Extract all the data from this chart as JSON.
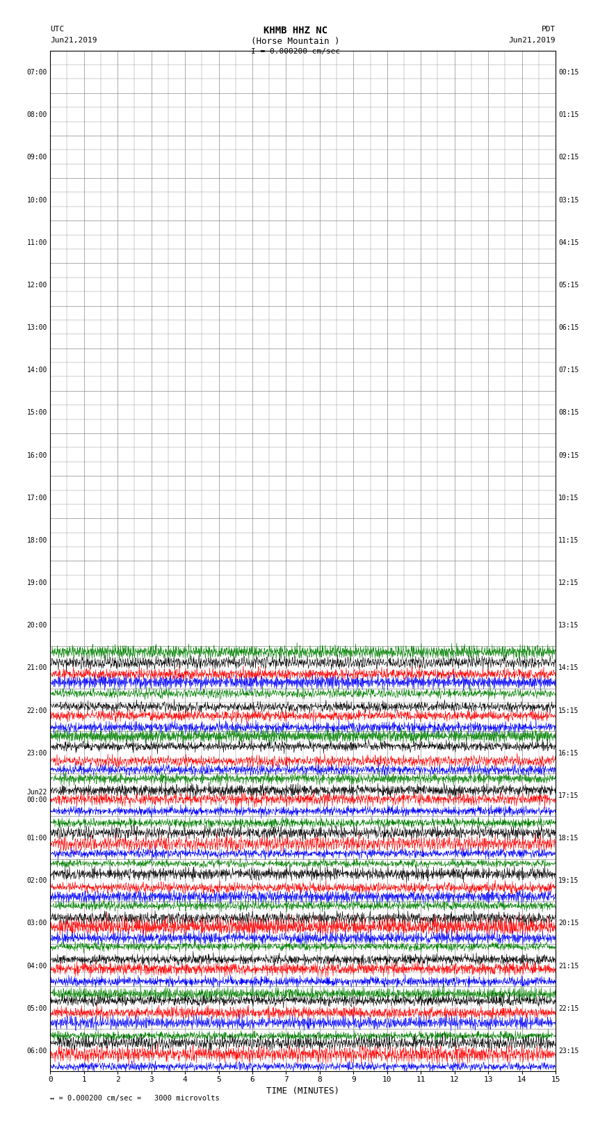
{
  "title_line1": "KHMB HHZ NC",
  "title_line2": "(Horse Mountain )",
  "title_scale": "I = 0.000200 cm/sec",
  "label_utc": "UTC",
  "label_utc_date": "Jun21,2019",
  "label_pdt": "PDT",
  "label_pdt_date": "Jun21,2019",
  "label_bottom": "TIME (MINUTES)",
  "label_scale": "= 0.000200 cm/sec =   3000 microvolts",
  "ylabel_left": [
    "07:00",
    "08:00",
    "09:00",
    "10:00",
    "11:00",
    "12:00",
    "13:00",
    "14:00",
    "15:00",
    "16:00",
    "17:00",
    "18:00",
    "19:00",
    "20:00",
    "21:00",
    "22:00",
    "23:00",
    "Jun22\n00:00",
    "01:00",
    "02:00",
    "03:00",
    "04:00",
    "05:00",
    "06:00"
  ],
  "ylabel_right": [
    "00:15",
    "01:15",
    "02:15",
    "03:15",
    "04:15",
    "05:15",
    "06:15",
    "07:15",
    "08:15",
    "09:15",
    "10:15",
    "11:15",
    "12:15",
    "13:15",
    "14:15",
    "15:15",
    "16:15",
    "17:15",
    "18:15",
    "19:15",
    "20:15",
    "21:15",
    "22:15",
    "23:15"
  ],
  "n_rows": 24,
  "n_quiet_rows": 14,
  "trace_colors": [
    "green",
    "black",
    "red",
    "blue"
  ],
  "background_color": "white",
  "grid_color": "#888888",
  "xlim": [
    0,
    15
  ],
  "xticks": [
    0,
    1,
    2,
    3,
    4,
    5,
    6,
    7,
    8,
    9,
    10,
    11,
    12,
    13,
    14,
    15
  ],
  "n_subrows_per_active": 5
}
